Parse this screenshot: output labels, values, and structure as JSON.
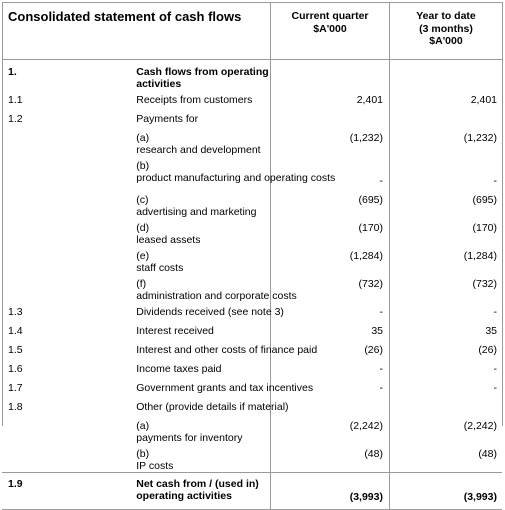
{
  "header": {
    "title": "Consolidated statement of cash flows",
    "col1": [
      "Current quarter",
      "$A'000"
    ],
    "col2": [
      "Year to date",
      "(3 months)",
      "$A'000"
    ]
  },
  "section": {
    "num": "1.",
    "label": "Cash flows from operating activities"
  },
  "rows": [
    {
      "num": "1.1",
      "ltr": "",
      "label": "Receipts from customers",
      "cq": "2,401",
      "ytd": "2,401"
    },
    {
      "num": "1.2",
      "ltr": "",
      "label": "Payments for",
      "cq": "",
      "ytd": ""
    },
    {
      "num": "",
      "ltr": "(a)",
      "label": "research and development",
      "cq": "(1,232)",
      "ytd": "(1,232)"
    },
    {
      "num": "",
      "ltr": "(b)",
      "label": "product manufacturing and operating costs",
      "cq": "-",
      "ytd": "-"
    },
    {
      "num": "",
      "ltr": "(c)",
      "label": "advertising and marketing",
      "cq": "(695)",
      "ytd": "(695)"
    },
    {
      "num": "",
      "ltr": "(d)",
      "label": "leased assets",
      "cq": "(170)",
      "ytd": "(170)"
    },
    {
      "num": "",
      "ltr": "(e)",
      "label": "staff costs",
      "cq": "(1,284)",
      "ytd": "(1,284)"
    },
    {
      "num": "",
      "ltr": "(f)",
      "label": "administration and corporate costs",
      "cq": "(732)",
      "ytd": "(732)"
    },
    {
      "num": "1.3",
      "ltr": "",
      "label": "Dividends received (see note 3)",
      "cq": "-",
      "ytd": "-"
    },
    {
      "num": "1.4",
      "ltr": "",
      "label": "Interest received",
      "cq": "35",
      "ytd": "35"
    },
    {
      "num": "1.5",
      "ltr": "",
      "label": "Interest and other costs of finance paid",
      "cq": "(26)",
      "ytd": "(26)"
    },
    {
      "num": "1.6",
      "ltr": "",
      "label": "Income taxes paid",
      "cq": "-",
      "ytd": "-"
    },
    {
      "num": "1.7",
      "ltr": "",
      "label": "Government grants and tax incentives",
      "cq": "-",
      "ytd": "-"
    },
    {
      "num": "1.8",
      "ltr": "",
      "label": "Other (provide details if material)",
      "cq": "",
      "ytd": ""
    },
    {
      "num": "",
      "ltr": "(a)",
      "label": "payments for inventory",
      "cq": "(2,242)",
      "ytd": "(2,242)"
    },
    {
      "num": "",
      "ltr": "(b)",
      "label": "IP costs",
      "cq": "(48)",
      "ytd": "(48)"
    }
  ],
  "total": {
    "num": "1.9",
    "label": "Net cash from / (used in) operating activities",
    "cq": "(3,993)",
    "ytd": "(3,993)"
  }
}
